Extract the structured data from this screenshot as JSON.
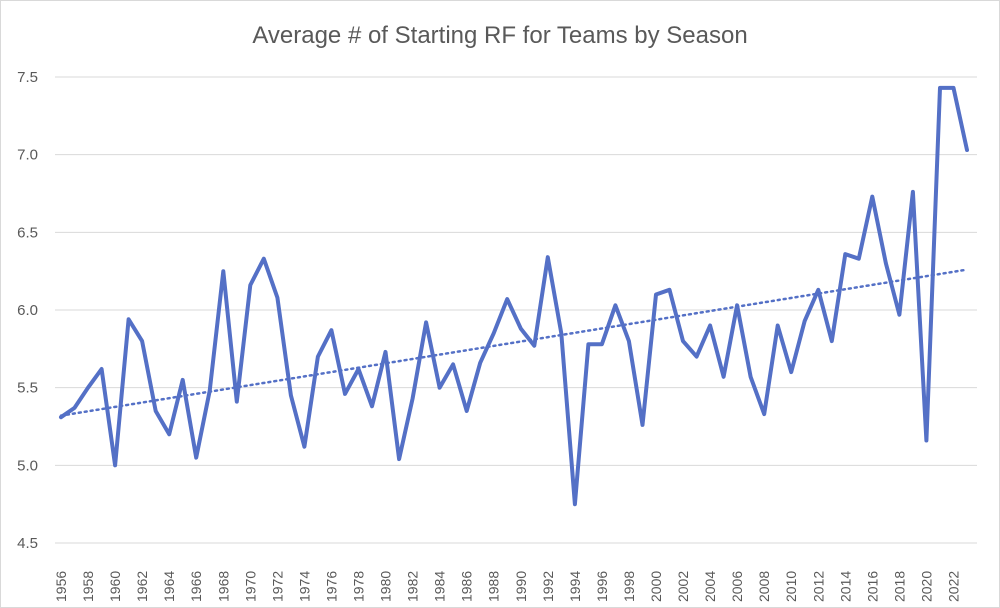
{
  "chart_data": {
    "type": "line",
    "title": "Average # of Starting RF for Teams by Season",
    "xlabel": "",
    "ylabel": "",
    "ylim": [
      4.5,
      7.5
    ],
    "yticks": [
      4.5,
      5.0,
      5.5,
      6.0,
      6.5,
      7.0,
      7.5
    ],
    "ytick_labels": [
      "4.5",
      "5.0",
      "5.5",
      "6.0",
      "6.5",
      "7.0",
      "7.5"
    ],
    "x": [
      1956,
      1957,
      1958,
      1959,
      1960,
      1961,
      1962,
      1963,
      1964,
      1965,
      1966,
      1967,
      1968,
      1969,
      1970,
      1971,
      1972,
      1973,
      1974,
      1975,
      1976,
      1977,
      1978,
      1979,
      1980,
      1981,
      1982,
      1983,
      1984,
      1985,
      1986,
      1987,
      1988,
      1989,
      1990,
      1991,
      1992,
      1993,
      1994,
      1995,
      1996,
      1997,
      1998,
      1999,
      2000,
      2001,
      2002,
      2003,
      2004,
      2005,
      2006,
      2007,
      2008,
      2009,
      2010,
      2011,
      2012,
      2013,
      2014,
      2015,
      2016,
      2017,
      2018,
      2019,
      2020,
      2021,
      2022,
      2023
    ],
    "xtick_labels": [
      "1956",
      "1958",
      "1960",
      "1962",
      "1964",
      "1966",
      "1968",
      "1970",
      "1972",
      "1974",
      "1976",
      "1978",
      "1980",
      "1982",
      "1984",
      "1986",
      "1988",
      "1990",
      "1992",
      "1994",
      "1996",
      "1998",
      "2000",
      "2002",
      "2004",
      "2006",
      "2008",
      "2010",
      "2012",
      "2014",
      "2016",
      "2018",
      "2020",
      "2022"
    ],
    "series": [
      {
        "name": "Average # of Starting RF",
        "color": "#5470c6",
        "values": [
          5.31,
          5.37,
          5.5,
          5.62,
          5.0,
          5.94,
          5.8,
          5.35,
          5.2,
          5.55,
          5.05,
          5.48,
          6.25,
          5.41,
          6.16,
          6.33,
          6.08,
          5.45,
          5.12,
          5.7,
          5.87,
          5.46,
          5.62,
          5.38,
          5.73,
          5.04,
          5.43,
          5.92,
          5.5,
          5.65,
          5.35,
          5.66,
          5.85,
          6.07,
          5.88,
          5.77,
          6.34,
          5.85,
          4.75,
          5.78,
          5.78,
          6.03,
          5.8,
          5.26,
          6.1,
          6.13,
          5.8,
          5.7,
          5.9,
          5.57,
          6.03,
          5.57,
          5.33,
          5.9,
          5.6,
          5.93,
          6.13,
          5.8,
          6.36,
          6.33,
          6.73,
          6.3,
          5.97,
          6.76,
          5.16,
          7.43,
          7.43,
          7.03
        ]
      },
      {
        "name": "Linear trend",
        "style": "dotted",
        "color": "#5470c6",
        "x": [
          1956,
          2023
        ],
        "values": [
          5.32,
          6.26
        ]
      }
    ],
    "grid": true,
    "legend": "none"
  }
}
